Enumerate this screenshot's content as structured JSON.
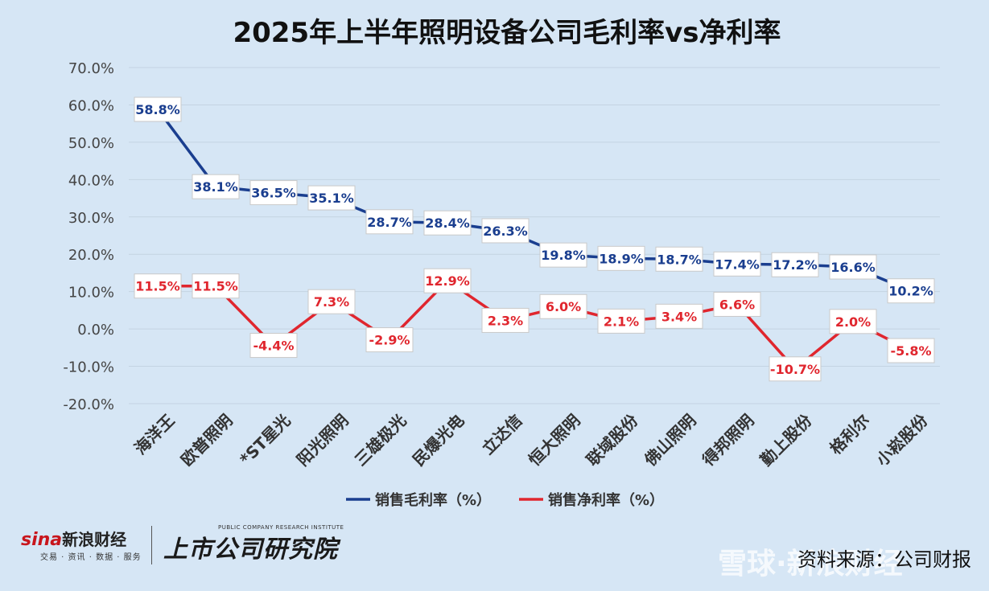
{
  "chart_data": {
    "type": "line",
    "title": "2025年上半年照明设备公司毛利率vs净利率",
    "categories": [
      "海洋王",
      "欧普照明",
      "*ST星光",
      "阳光照明",
      "三雄极光",
      "民爆光电",
      "立达信",
      "恒大照明",
      "联域股份",
      "佛山照明",
      "得邦照明",
      "勤上股份",
      "格利尔",
      "小崧股份"
    ],
    "series": [
      {
        "name": "销售毛利率（%）",
        "color": "#1a3e8f",
        "values": [
          58.8,
          38.1,
          36.5,
          35.1,
          28.7,
          28.4,
          26.3,
          19.8,
          18.9,
          18.7,
          17.4,
          17.2,
          16.6,
          10.2
        ],
        "labels": [
          "58.8%",
          "38.1%",
          "36.5%",
          "35.1%",
          "28.7%",
          "28.4%",
          "26.3%",
          "19.8%",
          "18.9%",
          "18.7%",
          "17.4%",
          "17.2%",
          "16.6%",
          "10.2%"
        ]
      },
      {
        "name": "销售净利率（%）",
        "color": "#e0262e",
        "values": [
          11.5,
          11.5,
          -4.4,
          7.3,
          -2.9,
          12.9,
          2.3,
          6.0,
          2.1,
          3.4,
          6.6,
          -10.7,
          2.0,
          -5.8
        ],
        "labels": [
          "11.5%",
          "11.5%",
          "-4.4%",
          "7.3%",
          "-2.9%",
          "12.9%",
          "2.3%",
          "6.0%",
          "2.1%",
          "3.4%",
          "6.6%",
          "-10.7%",
          "2.0%",
          "-5.8%"
        ]
      }
    ],
    "ylim": [
      -20,
      70
    ],
    "yticks": [
      -20,
      -10,
      0,
      10,
      20,
      30,
      40,
      50,
      60,
      70
    ],
    "ytick_labels": [
      "-20.0%",
      "-10.0%",
      "0.0%",
      "10.0%",
      "20.0%",
      "30.0%",
      "40.0%",
      "50.0%",
      "60.0%",
      "70.0%"
    ],
    "grid": true,
    "legend_position": "bottom"
  },
  "colors": {
    "background": "#d6e6f5",
    "gross": "#1a3e8f",
    "net": "#e0262e",
    "grid": "#c4d3e2"
  },
  "footer": {
    "sina_mark": "sina",
    "sina_name": "新浪财经",
    "sina_sub": "交易 · 资讯 · 数据 · 服务",
    "research_name": "上市公司研究院",
    "research_tag": "PUBLIC COMPANY RESEARCH INSTITUTE",
    "watermark": "雪球·新浪财经",
    "source": "资料来源：公司财报"
  }
}
